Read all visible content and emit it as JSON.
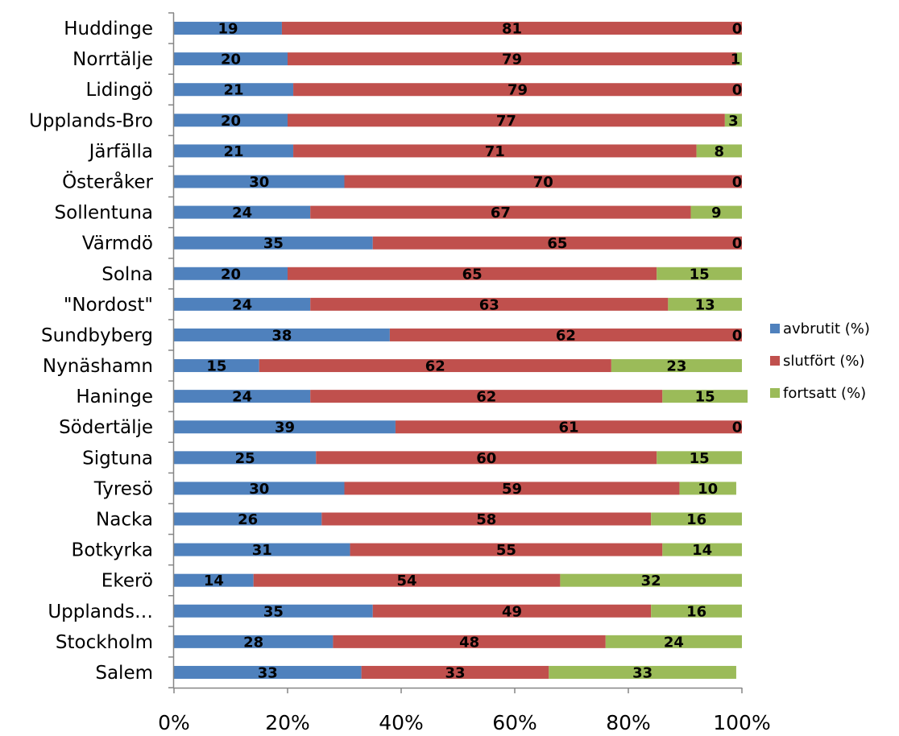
{
  "chart_data": {
    "type": "bar",
    "orientation": "horizontal",
    "stacked": "percent",
    "categories": [
      "Huddinge",
      "Norrtälje",
      "Lidingö",
      "Upplands-Bro",
      "Järfälla",
      "Österåker",
      "Sollentuna",
      "Värmdö",
      "Solna",
      "\"Nordost\"",
      "Sundbyberg",
      "Nynäshamn",
      "Haninge",
      "Södertälje",
      "Sigtuna",
      "Tyresö",
      "Nacka",
      "Botkyrka",
      "Ekerö",
      "Upplands…",
      "Stockholm",
      "Salem"
    ],
    "series": [
      {
        "name": "avbrutit (%)",
        "color": "#4F81BD",
        "values": [
          19,
          20,
          21,
          20,
          21,
          30,
          24,
          35,
          20,
          24,
          38,
          15,
          24,
          39,
          25,
          30,
          26,
          31,
          14,
          35,
          28,
          33
        ]
      },
      {
        "name": "slutfört (%)",
        "color": "#C0504D",
        "values": [
          81,
          79,
          79,
          77,
          71,
          70,
          67,
          65,
          65,
          63,
          62,
          62,
          62,
          61,
          60,
          59,
          58,
          55,
          54,
          49,
          48,
          33
        ]
      },
      {
        "name": "fortsatt (%)",
        "color": "#9BBB59",
        "values": [
          0,
          1,
          0,
          3,
          8,
          0,
          9,
          0,
          15,
          13,
          0,
          23,
          15,
          0,
          15,
          10,
          16,
          14,
          32,
          16,
          24,
          33
        ]
      }
    ],
    "x_ticks": [
      "0%",
      "20%",
      "40%",
      "60%",
      "80%",
      "100%"
    ],
    "xlim": [
      0,
      100
    ],
    "grid": false,
    "legend_position": "right",
    "data_labels": true
  }
}
